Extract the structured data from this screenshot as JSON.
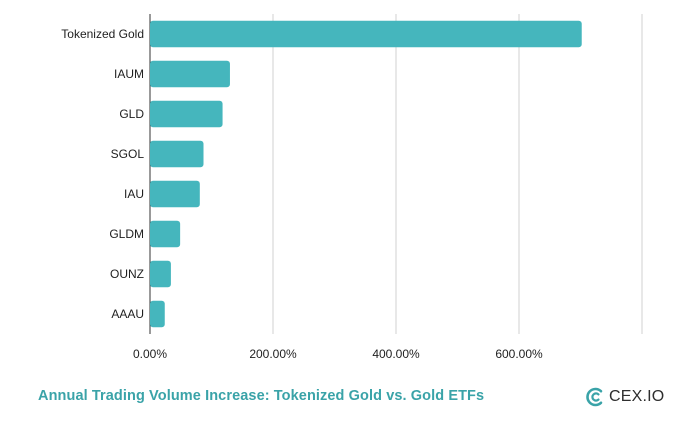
{
  "chart_data": {
    "type": "bar",
    "orientation": "horizontal",
    "categories": [
      "Tokenized Gold",
      "IAUM",
      "GLD",
      "SGOL",
      "IAU",
      "GLDM",
      "OUNZ",
      "AAAU"
    ],
    "values": [
      702,
      130,
      118,
      87,
      81,
      49,
      34,
      24
    ],
    "x_ticks": [
      0,
      200,
      400,
      600,
      800
    ],
    "x_tick_labels": [
      "0.00%",
      "200.00%",
      "400.00%",
      "600.00%",
      ""
    ],
    "xlim": [
      0,
      800
    ],
    "grid": true,
    "bar_color": "#45b6bd",
    "grid_color": "#d0d0d0",
    "legend": "none"
  },
  "footer": {
    "title": "Annual Trading Volume Increase: Tokenized Gold vs. Gold ETFs",
    "title_color": "#3aa3a8",
    "brand": "CEX.IO",
    "brand_icon": "cex-io-logo-icon"
  }
}
